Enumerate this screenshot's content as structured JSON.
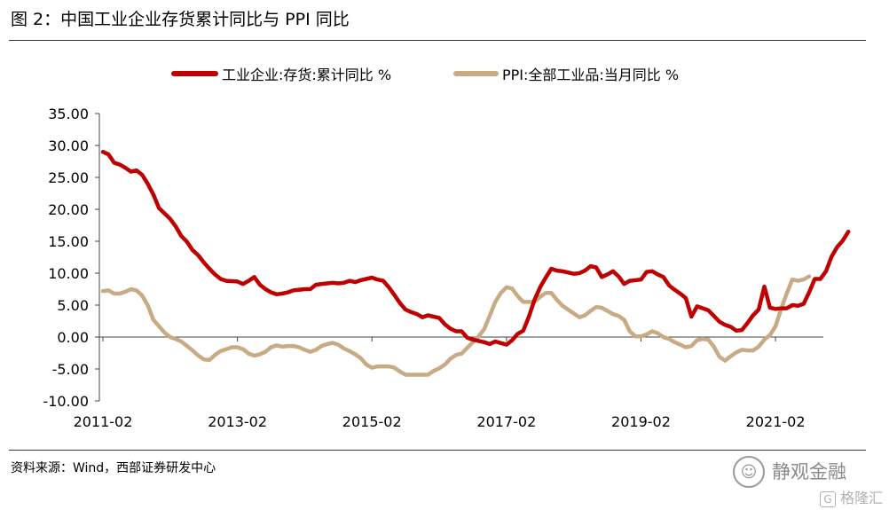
{
  "title": "图 2：中国工业企业存货累计同比与 PPI 同比",
  "source": "资料来源：Wind，西部证券研发中心",
  "watermark": {
    "logo_icon": "wechat-icon",
    "text": "静观金融",
    "brand": "格隆汇",
    "brand_icon": "g-logo-icon"
  },
  "chart_data": {
    "type": "line",
    "title": "",
    "xlabel": "",
    "ylabel": "",
    "ylim": [
      -10,
      35
    ],
    "yticks": [
      "35.00",
      "30.00",
      "25.00",
      "20.00",
      "15.00",
      "10.00",
      "5.00",
      "0.00",
      "-5.00",
      "-10.00"
    ],
    "xticks": [
      "2011-02",
      "2013-02",
      "2015-02",
      "2017-02",
      "2019-02",
      "2021-02"
    ],
    "xrange": [
      "2011-02",
      "2021-08"
    ],
    "grid": false,
    "legend_position": "top",
    "series": [
      {
        "name": "工业企业:存货:累计同比 %",
        "color": "#c00000",
        "points": [
          [
            "2011-02",
            29.0
          ],
          [
            "2011-03",
            28.6
          ],
          [
            "2011-04",
            27.3
          ],
          [
            "2011-05",
            27.0
          ],
          [
            "2011-06",
            26.5
          ],
          [
            "2011-07",
            25.9
          ],
          [
            "2011-08",
            26.1
          ],
          [
            "2011-09",
            25.4
          ],
          [
            "2011-10",
            24.0
          ],
          [
            "2011-11",
            22.3
          ],
          [
            "2011-12",
            20.2
          ],
          [
            "2012-02",
            18.5
          ],
          [
            "2012-03",
            17.3
          ],
          [
            "2012-04",
            15.8
          ],
          [
            "2012-05",
            14.9
          ],
          [
            "2012-06",
            13.6
          ],
          [
            "2012-07",
            12.8
          ],
          [
            "2012-08",
            11.7
          ],
          [
            "2012-09",
            10.7
          ],
          [
            "2012-10",
            9.8
          ],
          [
            "2012-11",
            9.1
          ],
          [
            "2012-12",
            8.8
          ],
          [
            "2013-02",
            8.7
          ],
          [
            "2013-03",
            8.3
          ],
          [
            "2013-04",
            8.8
          ],
          [
            "2013-05",
            9.4
          ],
          [
            "2013-06",
            8.2
          ],
          [
            "2013-07",
            7.5
          ],
          [
            "2013-08",
            7.0
          ],
          [
            "2013-09",
            6.7
          ],
          [
            "2013-10",
            6.8
          ],
          [
            "2013-11",
            7.0
          ],
          [
            "2013-12",
            7.3
          ],
          [
            "2014-02",
            7.5
          ],
          [
            "2014-03",
            7.5
          ],
          [
            "2014-04",
            8.2
          ],
          [
            "2014-05",
            8.3
          ],
          [
            "2014-06",
            8.4
          ],
          [
            "2014-07",
            8.5
          ],
          [
            "2014-08",
            8.4
          ],
          [
            "2014-09",
            8.5
          ],
          [
            "2014-10",
            8.8
          ],
          [
            "2014-11",
            8.6
          ],
          [
            "2014-12",
            8.9
          ],
          [
            "2015-02",
            9.3
          ],
          [
            "2015-03",
            9.0
          ],
          [
            "2015-04",
            8.8
          ],
          [
            "2015-05",
            7.8
          ],
          [
            "2015-06",
            6.6
          ],
          [
            "2015-07",
            5.3
          ],
          [
            "2015-08",
            4.3
          ],
          [
            "2015-09",
            3.9
          ],
          [
            "2015-10",
            3.6
          ],
          [
            "2015-11",
            3.1
          ],
          [
            "2015-12",
            3.4
          ],
          [
            "2016-02",
            3.0
          ],
          [
            "2016-03",
            2.0
          ],
          [
            "2016-04",
            1.3
          ],
          [
            "2016-05",
            0.9
          ],
          [
            "2016-06",
            0.9
          ],
          [
            "2016-07",
            -0.1
          ],
          [
            "2016-08",
            -0.4
          ],
          [
            "2016-09",
            -0.6
          ],
          [
            "2016-10",
            -0.8
          ],
          [
            "2016-11",
            -1.1
          ],
          [
            "2016-12",
            -0.7
          ],
          [
            "2017-02",
            -1.2
          ],
          [
            "2017-03",
            -0.5
          ],
          [
            "2017-04",
            0.5
          ],
          [
            "2017-05",
            1.0
          ],
          [
            "2017-06",
            3.2
          ],
          [
            "2017-07",
            5.8
          ],
          [
            "2017-08",
            7.8
          ],
          [
            "2017-09",
            9.3
          ],
          [
            "2017-10",
            10.7
          ],
          [
            "2017-11",
            10.4
          ],
          [
            "2017-12",
            10.3
          ],
          [
            "2018-02",
            9.9
          ],
          [
            "2018-03",
            10.0
          ],
          [
            "2018-04",
            10.4
          ],
          [
            "2018-05",
            11.1
          ],
          [
            "2018-06",
            10.9
          ],
          [
            "2018-07",
            9.4
          ],
          [
            "2018-08",
            9.8
          ],
          [
            "2018-09",
            10.3
          ],
          [
            "2018-10",
            9.5
          ],
          [
            "2018-11",
            8.3
          ],
          [
            "2018-12",
            8.8
          ],
          [
            "2019-02",
            9.0
          ],
          [
            "2019-03",
            10.2
          ],
          [
            "2019-04",
            10.3
          ],
          [
            "2019-05",
            9.8
          ],
          [
            "2019-06",
            9.4
          ],
          [
            "2019-07",
            8.1
          ],
          [
            "2019-08",
            7.4
          ],
          [
            "2019-09",
            6.8
          ],
          [
            "2019-10",
            6.1
          ],
          [
            "2019-11",
            3.2
          ],
          [
            "2019-12",
            4.8
          ],
          [
            "2020-02",
            4.2
          ],
          [
            "2020-03",
            3.3
          ],
          [
            "2020-04",
            2.4
          ],
          [
            "2020-05",
            1.9
          ],
          [
            "2020-06",
            1.6
          ],
          [
            "2020-07",
            1.0
          ],
          [
            "2020-08",
            1.1
          ],
          [
            "2020-09",
            2.2
          ],
          [
            "2020-10",
            3.4
          ],
          [
            "2020-11",
            4.3
          ],
          [
            "2020-12",
            7.9
          ],
          [
            "2021-01",
            4.6
          ],
          [
            "2021-02",
            4.4
          ],
          [
            "2021-03",
            4.5
          ],
          [
            "2021-04",
            4.5
          ],
          [
            "2021-05",
            5.0
          ],
          [
            "2021-06",
            4.9
          ],
          [
            "2021-07",
            5.2
          ],
          [
            "2021-08",
            7.0
          ],
          [
            "2021-09",
            9.1
          ],
          [
            "2021-10",
            9.1
          ],
          [
            "2021-11",
            10.3
          ],
          [
            "2021-12",
            12.6
          ],
          [
            "2022-01",
            14.1
          ],
          [
            "2022-02",
            15.1
          ],
          [
            "2022-03",
            16.5
          ]
        ]
      },
      {
        "name": "PPI:全部工业品:当月同比 %",
        "color": "#c8aa84",
        "points": [
          [
            "2011-02",
            7.2
          ],
          [
            "2011-03",
            7.3
          ],
          [
            "2011-04",
            6.8
          ],
          [
            "2011-05",
            6.8
          ],
          [
            "2011-06",
            7.1
          ],
          [
            "2011-07",
            7.5
          ],
          [
            "2011-08",
            7.3
          ],
          [
            "2011-09",
            6.5
          ],
          [
            "2011-10",
            5.0
          ],
          [
            "2011-11",
            2.7
          ],
          [
            "2011-12",
            1.7
          ],
          [
            "2012-01",
            0.7
          ],
          [
            "2012-02",
            0.0
          ],
          [
            "2012-03",
            -0.3
          ],
          [
            "2012-04",
            -0.7
          ],
          [
            "2012-05",
            -1.4
          ],
          [
            "2012-06",
            -2.1
          ],
          [
            "2012-07",
            -2.9
          ],
          [
            "2012-08",
            -3.5
          ],
          [
            "2012-09",
            -3.6
          ],
          [
            "2012-10",
            -2.8
          ],
          [
            "2012-11",
            -2.2
          ],
          [
            "2012-12",
            -1.9
          ],
          [
            "2013-01",
            -1.6
          ],
          [
            "2013-02",
            -1.6
          ],
          [
            "2013-03",
            -1.9
          ],
          [
            "2013-04",
            -2.6
          ],
          [
            "2013-05",
            -2.9
          ],
          [
            "2013-06",
            -2.7
          ],
          [
            "2013-07",
            -2.3
          ],
          [
            "2013-08",
            -1.6
          ],
          [
            "2013-09",
            -1.3
          ],
          [
            "2013-10",
            -1.5
          ],
          [
            "2013-11",
            -1.4
          ],
          [
            "2013-12",
            -1.4
          ],
          [
            "2014-01",
            -1.6
          ],
          [
            "2014-02",
            -2.0
          ],
          [
            "2014-03",
            -2.3
          ],
          [
            "2014-04",
            -2.0
          ],
          [
            "2014-05",
            -1.4
          ],
          [
            "2014-06",
            -1.1
          ],
          [
            "2014-07",
            -0.9
          ],
          [
            "2014-08",
            -1.2
          ],
          [
            "2014-09",
            -1.8
          ],
          [
            "2014-10",
            -2.2
          ],
          [
            "2014-11",
            -2.7
          ],
          [
            "2014-12",
            -3.3
          ],
          [
            "2015-01",
            -4.3
          ],
          [
            "2015-02",
            -4.8
          ],
          [
            "2015-03",
            -4.6
          ],
          [
            "2015-04",
            -4.6
          ],
          [
            "2015-05",
            -4.6
          ],
          [
            "2015-06",
            -4.8
          ],
          [
            "2015-07",
            -5.4
          ],
          [
            "2015-08",
            -5.9
          ],
          [
            "2015-09",
            -5.9
          ],
          [
            "2015-10",
            -5.9
          ],
          [
            "2015-11",
            -5.9
          ],
          [
            "2015-12",
            -5.9
          ],
          [
            "2016-01",
            -5.3
          ],
          [
            "2016-02",
            -4.9
          ],
          [
            "2016-03",
            -4.3
          ],
          [
            "2016-04",
            -3.4
          ],
          [
            "2016-05",
            -2.8
          ],
          [
            "2016-06",
            -2.6
          ],
          [
            "2016-07",
            -1.7
          ],
          [
            "2016-08",
            -0.8
          ],
          [
            "2016-09",
            0.1
          ],
          [
            "2016-10",
            1.2
          ],
          [
            "2016-11",
            3.3
          ],
          [
            "2016-12",
            5.5
          ],
          [
            "2017-01",
            6.9
          ],
          [
            "2017-02",
            7.8
          ],
          [
            "2017-03",
            7.6
          ],
          [
            "2017-04",
            6.4
          ],
          [
            "2017-05",
            5.5
          ],
          [
            "2017-06",
            5.5
          ],
          [
            "2017-07",
            5.5
          ],
          [
            "2017-08",
            6.3
          ],
          [
            "2017-09",
            6.9
          ],
          [
            "2017-10",
            6.9
          ],
          [
            "2017-11",
            5.8
          ],
          [
            "2017-12",
            4.9
          ],
          [
            "2018-01",
            4.3
          ],
          [
            "2018-02",
            3.7
          ],
          [
            "2018-03",
            3.1
          ],
          [
            "2018-04",
            3.4
          ],
          [
            "2018-05",
            4.1
          ],
          [
            "2018-06",
            4.7
          ],
          [
            "2018-07",
            4.6
          ],
          [
            "2018-08",
            4.1
          ],
          [
            "2018-09",
            3.6
          ],
          [
            "2018-10",
            3.3
          ],
          [
            "2018-11",
            2.7
          ],
          [
            "2018-12",
            0.9
          ],
          [
            "2019-01",
            0.1
          ],
          [
            "2019-02",
            0.1
          ],
          [
            "2019-03",
            0.4
          ],
          [
            "2019-04",
            0.9
          ],
          [
            "2019-05",
            0.6
          ],
          [
            "2019-06",
            0.0
          ],
          [
            "2019-07",
            -0.3
          ],
          [
            "2019-08",
            -0.8
          ],
          [
            "2019-09",
            -1.2
          ],
          [
            "2019-10",
            -1.6
          ],
          [
            "2019-11",
            -1.4
          ],
          [
            "2019-12",
            -0.5
          ],
          [
            "2020-01",
            -0.3
          ],
          [
            "2020-02",
            -0.4
          ],
          [
            "2020-03",
            -1.5
          ],
          [
            "2020-04",
            -3.1
          ],
          [
            "2020-05",
            -3.7
          ],
          [
            "2020-06",
            -3.0
          ],
          [
            "2020-07",
            -2.4
          ],
          [
            "2020-08",
            -2.0
          ],
          [
            "2020-09",
            -2.1
          ],
          [
            "2020-10",
            -2.1
          ],
          [
            "2020-11",
            -1.5
          ],
          [
            "2020-12",
            -0.4
          ],
          [
            "2021-01",
            0.3
          ],
          [
            "2021-02",
            1.7
          ],
          [
            "2021-03",
            4.4
          ],
          [
            "2021-04",
            6.8
          ],
          [
            "2021-05",
            9.0
          ],
          [
            "2021-06",
            8.8
          ],
          [
            "2021-07",
            9.0
          ],
          [
            "2021-08",
            9.5
          ]
        ]
      }
    ]
  }
}
